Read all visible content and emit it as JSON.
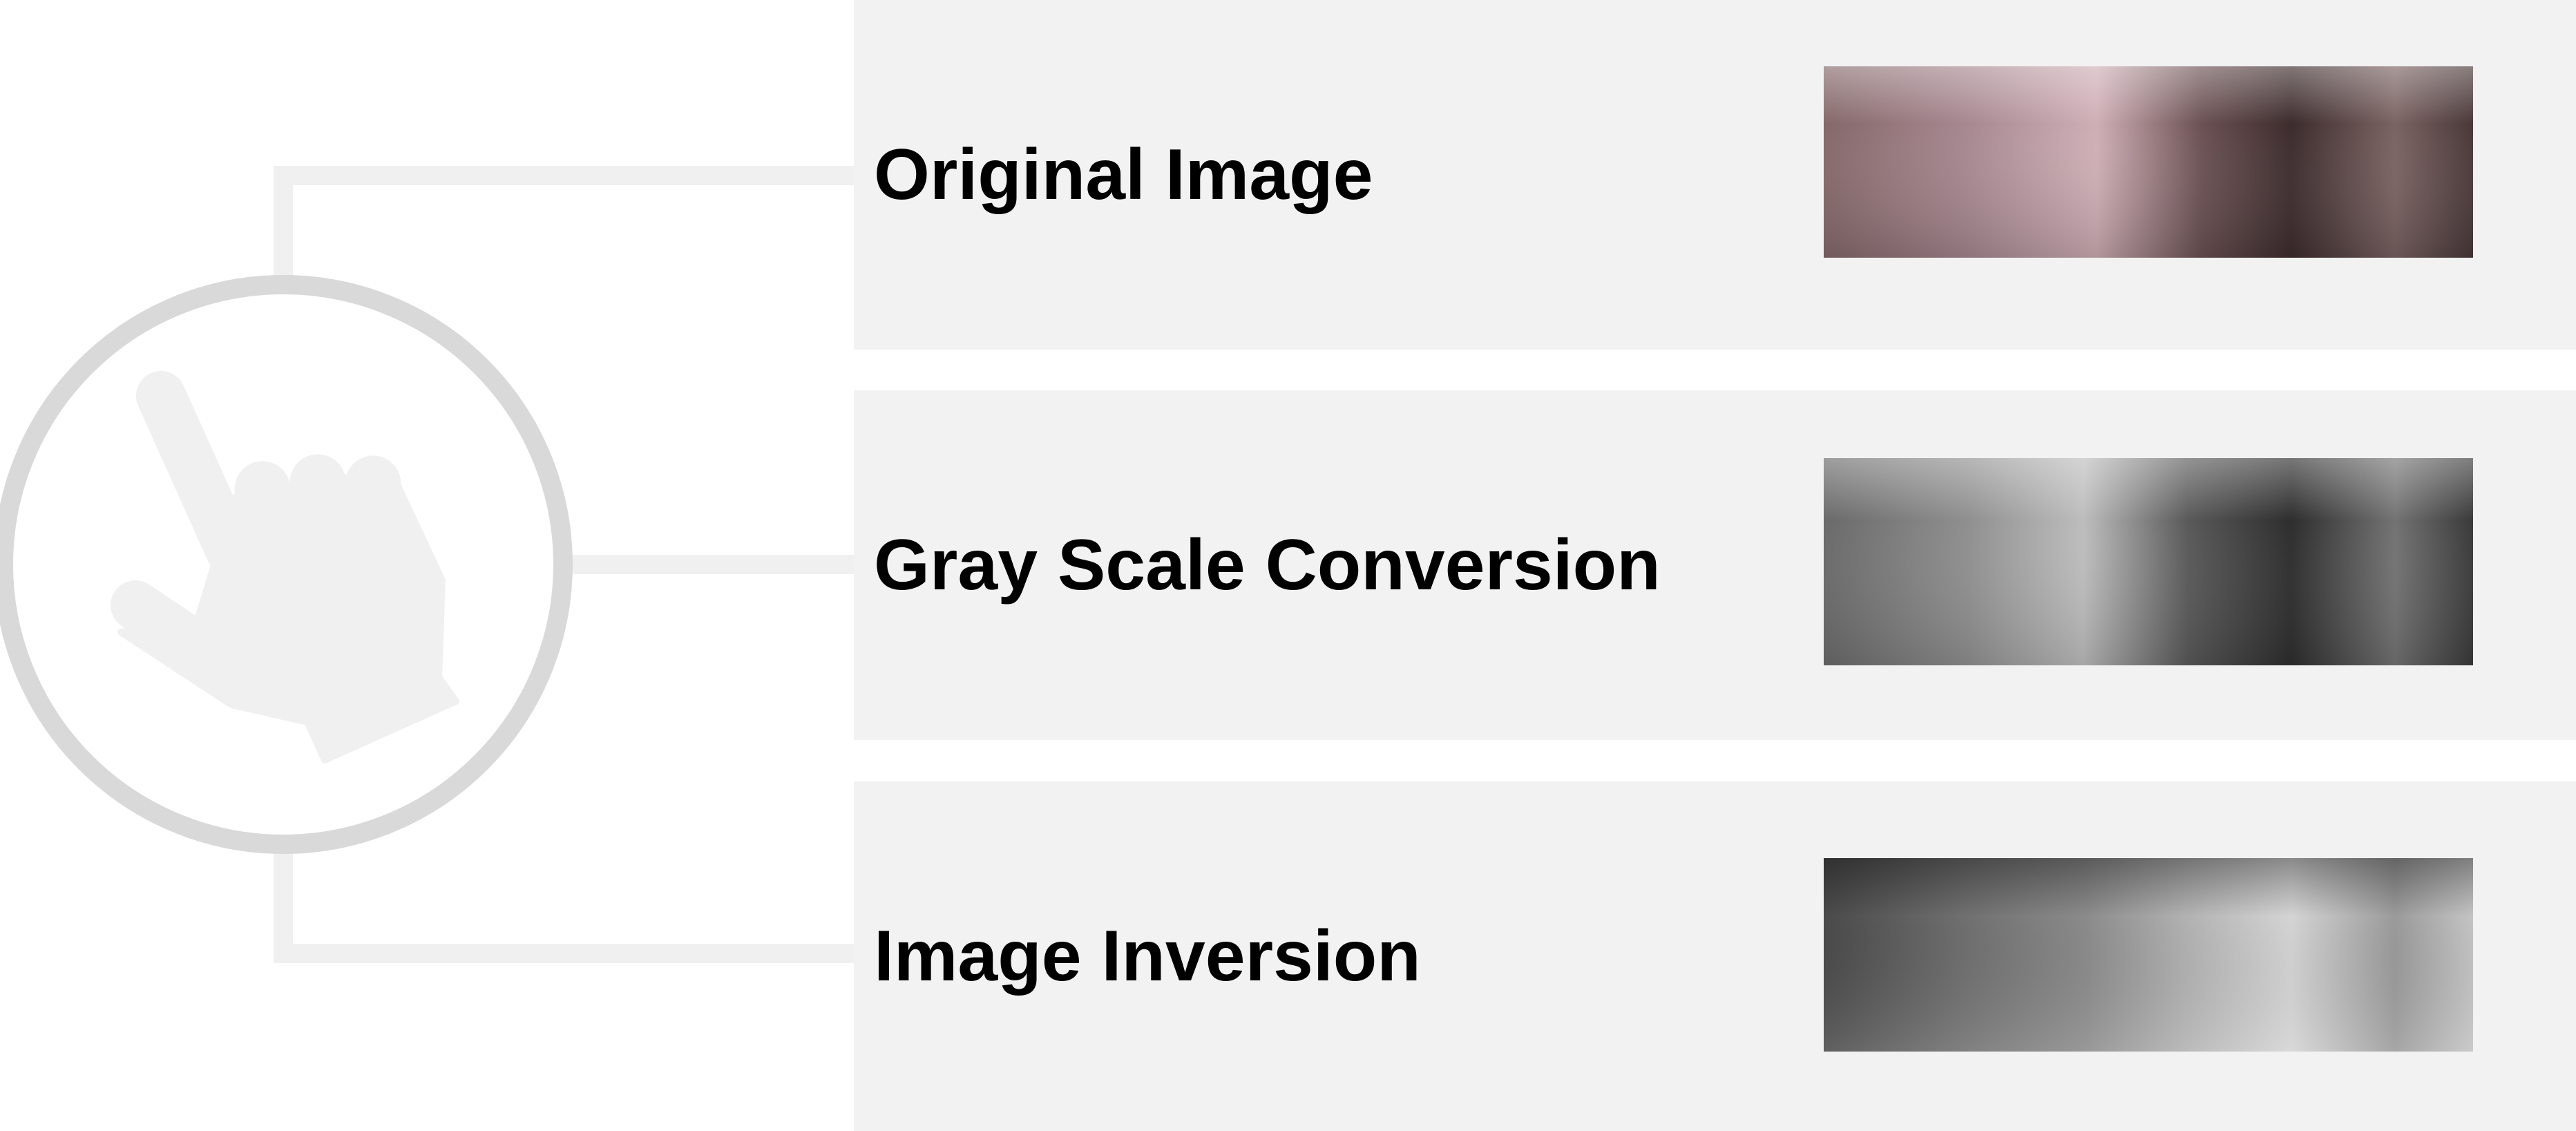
{
  "steps": [
    {
      "label": "Original Image",
      "thumbnail": "original-thumbnail",
      "palette": [
        "#8a6a6c",
        "#d6b4bb",
        "#3c2c2c",
        "#7a5e5e"
      ]
    },
    {
      "label": "Gray Scale Conversion",
      "thumbnail": "grayscale-thumbnail",
      "palette": [
        "#6e6e6e",
        "#bdbdbd",
        "#2c2c2c",
        "#777777"
      ]
    },
    {
      "label": "Image Inversion",
      "thumbnail": "inverted-thumbnail",
      "palette": [
        "#555555",
        "#a6a6a6",
        "#dadada",
        "#999999"
      ]
    }
  ],
  "icon": "touch-hand-icon",
  "colors": {
    "panel_bg": "#f2f2f2",
    "connector": "#f0f0f0",
    "circle_stroke": "#d9d9d9",
    "hand_fill": "#f0f0f0",
    "label_text": "#000000"
  }
}
